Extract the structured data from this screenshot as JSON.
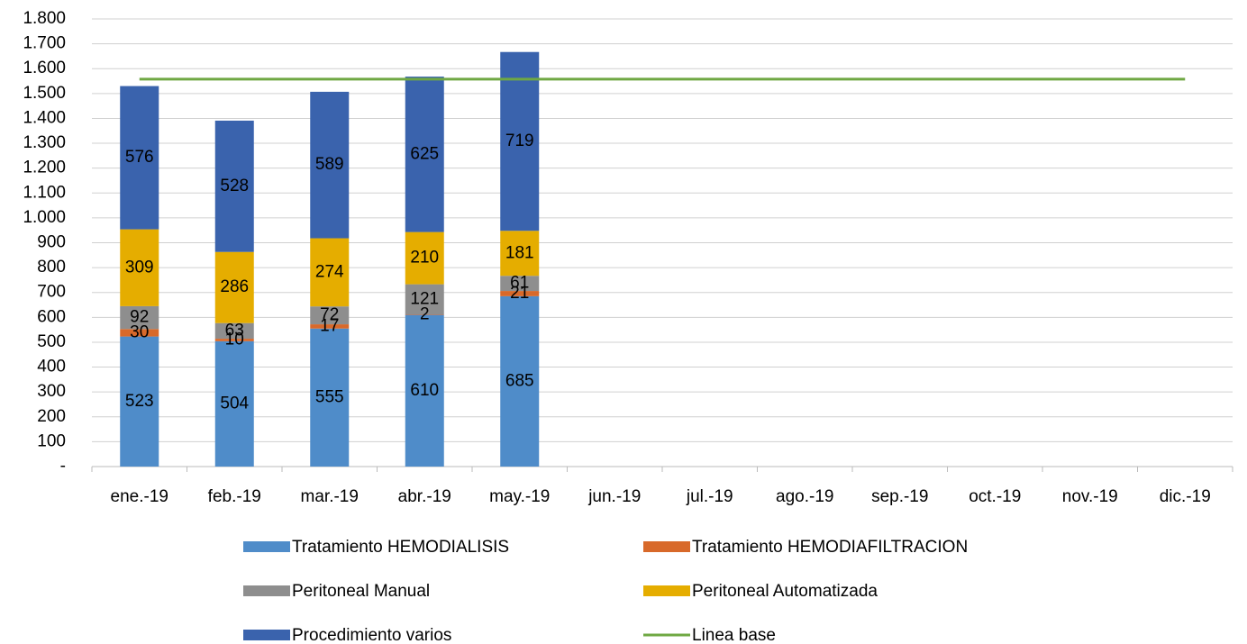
{
  "chart_data": {
    "type": "bar",
    "stacked": true,
    "grid": true,
    "categories": [
      "ene.-19",
      "feb.-19",
      "mar.-19",
      "abr.-19",
      "may.-19",
      "jun.-19",
      "jul.-19",
      "ago.-19",
      "sep.-19",
      "oct.-19",
      "nov.-19",
      "dic.-19"
    ],
    "series": [
      {
        "name": "Tratamiento HEMODIALISIS",
        "color": "#4f8cc9",
        "values": [
          523,
          504,
          555,
          610,
          685,
          null,
          null,
          null,
          null,
          null,
          null,
          null
        ]
      },
      {
        "name": "Tratamiento HEMODIAFILTRACION",
        "color": "#d8692a",
        "values": [
          30,
          10,
          17,
          2,
          21,
          null,
          null,
          null,
          null,
          null,
          null,
          null
        ]
      },
      {
        "name": "Peritoneal Manual",
        "color": "#8e8e8e",
        "values": [
          92,
          63,
          72,
          121,
          61,
          null,
          null,
          null,
          null,
          null,
          null,
          null
        ]
      },
      {
        "name": "Peritoneal Automatizada",
        "color": "#e5ad00",
        "values": [
          309,
          286,
          274,
          210,
          181,
          null,
          null,
          null,
          null,
          null,
          null,
          null
        ]
      },
      {
        "name": "Procedimiento varios",
        "color": "#3a63ad",
        "values": [
          576,
          528,
          589,
          625,
          719,
          null,
          null,
          null,
          null,
          null,
          null,
          null
        ]
      },
      {
        "name": "Linea base",
        "color": "#6fa843",
        "type": "line",
        "values": [
          1558,
          1558,
          1558,
          1558,
          1558,
          1558,
          1558,
          1558,
          1558,
          1558,
          1558,
          1558
        ]
      }
    ],
    "ylim": [
      0,
      1800
    ],
    "yticks": [
      {
        "value": 0,
        "label": "-"
      },
      100,
      200,
      300,
      400,
      500,
      600,
      700,
      800,
      900,
      {
        "value": 1000,
        "label": "1.000"
      },
      {
        "value": 1100,
        "label": "1.100"
      },
      {
        "value": 1200,
        "label": "1.200"
      },
      {
        "value": 1300,
        "label": "1.300"
      },
      {
        "value": 1400,
        "label": "1.400"
      },
      {
        "value": 1500,
        "label": "1.500"
      },
      {
        "value": 1600,
        "label": "1.600"
      },
      {
        "value": 1700,
        "label": "1.700"
      },
      {
        "value": 1800,
        "label": "1.800"
      }
    ]
  }
}
